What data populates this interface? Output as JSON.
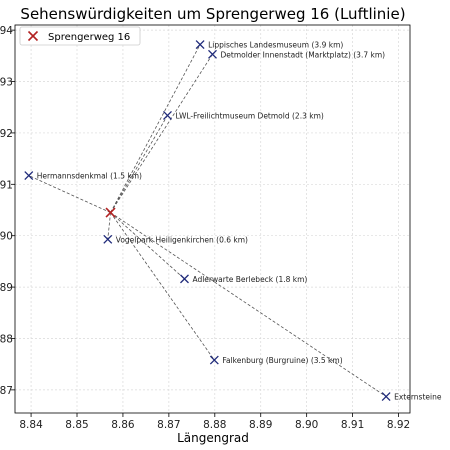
{
  "chart_data": {
    "type": "scatter",
    "title": "Sehenswürdigkeiten um Sprengerweg 16 (Luftlinie)",
    "xlabel": "Längengrad",
    "ylabel": "",
    "xlim": [
      8.8365,
      8.9225
    ],
    "ylim": [
      51.8655,
      51.941
    ],
    "grid": true,
    "legend_position": "top-left",
    "x_ticks": [
      {
        "value": 8.84,
        "label": "8.84"
      },
      {
        "value": 8.85,
        "label": "8.85"
      },
      {
        "value": 8.86,
        "label": "8.86"
      },
      {
        "value": 8.87,
        "label": "8.87"
      },
      {
        "value": 8.88,
        "label": "8.88"
      },
      {
        "value": 8.89,
        "label": "8.89"
      },
      {
        "value": 8.9,
        "label": "8.90"
      },
      {
        "value": 8.91,
        "label": "8.91"
      },
      {
        "value": 8.92,
        "label": "8.92"
      }
    ],
    "y_ticks": [
      {
        "value": 51.87,
        "label": "87"
      },
      {
        "value": 51.88,
        "label": "88"
      },
      {
        "value": 51.89,
        "label": "89"
      },
      {
        "value": 51.9,
        "label": "90"
      },
      {
        "value": 51.91,
        "label": "91"
      },
      {
        "value": 51.92,
        "label": "92"
      },
      {
        "value": 51.93,
        "label": "93"
      },
      {
        "value": 51.94,
        "label": "94"
      }
    ],
    "origin": {
      "name": "Sprengerweg 16",
      "x": 8.8573,
      "y": 51.9045
    },
    "points": [
      {
        "label": "Lippisches Landesmuseum (3.9 km)",
        "x": 8.8768,
        "y": 51.9372
      },
      {
        "label": "Detmolder Innenstadt (Marktplatz) (3.7 km)",
        "x": 8.8795,
        "y": 51.9353
      },
      {
        "label": "LWL-Freilichtmuseum Detmold (2.3 km)",
        "x": 8.8697,
        "y": 51.9234
      },
      {
        "label": "Hermannsdenkmal (1.5 km)",
        "x": 8.8395,
        "y": 51.9117
      },
      {
        "label": "Vogelpark Heiligenkirchen (0.6 km)",
        "x": 8.8567,
        "y": 51.8993
      },
      {
        "label": "Adlerwarte Berlebeck (1.8 km)",
        "x": 8.8734,
        "y": 51.8916
      },
      {
        "label": "Falkenburg (Burgruine) (3.5 km)",
        "x": 8.8799,
        "y": 51.8758
      },
      {
        "label": "Externsteine",
        "x": 8.9173,
        "y": 51.8687
      }
    ],
    "colors": {
      "origin": "#b22222",
      "points": "#1f2a7a",
      "lines": "#555555",
      "grid": "#d9d9d9"
    }
  }
}
